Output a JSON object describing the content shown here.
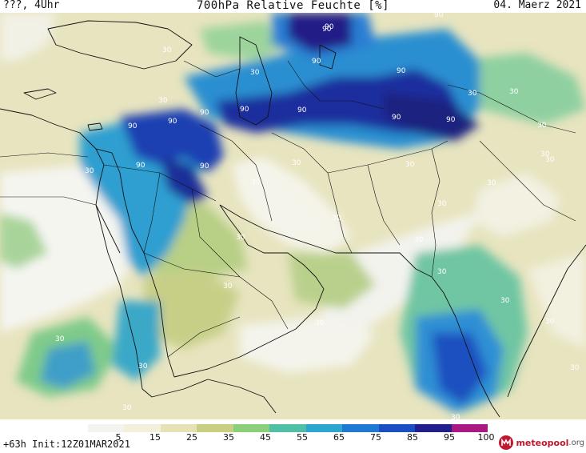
{
  "header": {
    "left": "???, 4Uhr",
    "title": "700hPa Relative Feuchte [%]",
    "right": "04. Maerz 2021"
  },
  "footer": {
    "run": "+63h  Init:12Z01MAR2021"
  },
  "logo": {
    "name": "meteo",
    "name2": "pool",
    "suffix": ".org"
  },
  "legend": {
    "ticks": [
      "5",
      "15",
      "25",
      "35",
      "45",
      "55",
      "65",
      "75",
      "85",
      "95",
      "100"
    ],
    "colors": [
      "#f3f3ef",
      "#f2f0dc",
      "#e6e2b4",
      "#c8cf82",
      "#8ccf7a",
      "#4fc0a6",
      "#2aa6cf",
      "#1e79d2",
      "#1a4fc2",
      "#201f8c",
      "#a81a82"
    ]
  },
  "contour_labels": [
    "30",
    "90",
    "90",
    "30",
    "30",
    "30",
    "90",
    "90",
    "90",
    "90",
    "90",
    "90",
    "90",
    "30",
    "30",
    "30",
    "90",
    "90",
    "90",
    "90",
    "90",
    "30",
    "30",
    "30",
    "30",
    "30",
    "30",
    "30",
    "30",
    "30",
    "30",
    "30",
    "30",
    "30",
    "30",
    "30",
    "30",
    "30",
    "30",
    "30",
    "30"
  ],
  "colors": {
    "dry": "#e9e7c8",
    "verydry": "#f4f4ee",
    "moist": "#8ccf7a",
    "wet": "#2aa6cf",
    "verywet": "#1e3fb5",
    "saturated": "#1d1a80"
  }
}
